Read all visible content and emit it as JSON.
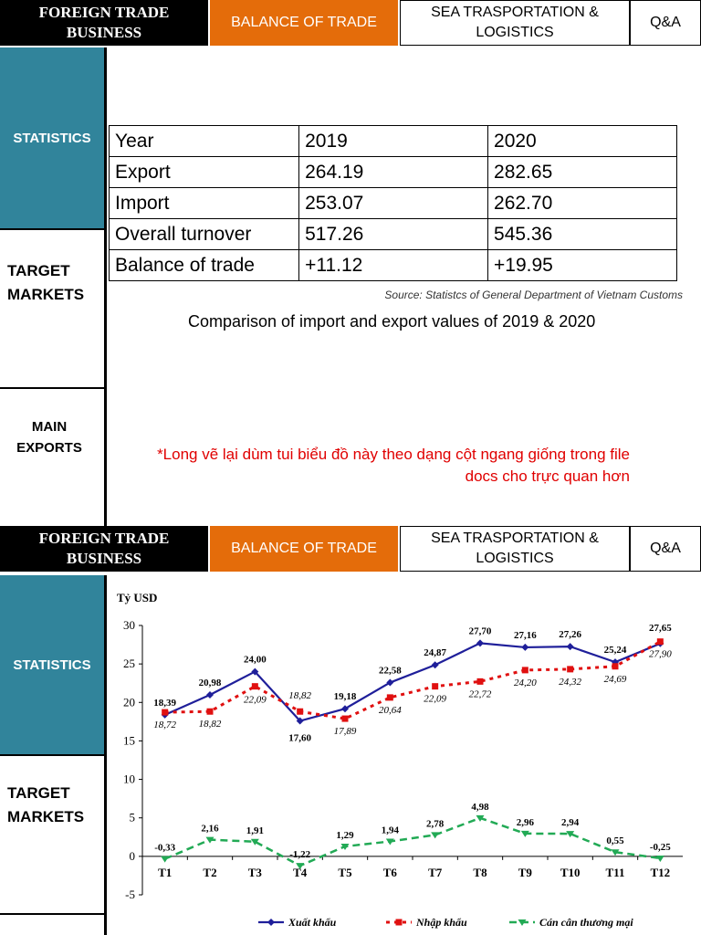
{
  "nav": {
    "tab_foreign": "FOREIGN TRADE BUSINESS",
    "tab_balance": "BALANCE OF TRADE",
    "tab_sea": "SEA TRASPORTATION & LOGISTICS",
    "tab_qa": "Q&A"
  },
  "sidebar": {
    "statistics": "STATISTICS",
    "target_markets": "TARGET MARKETS",
    "main_exports": "MAIN EXPORTS"
  },
  "table": {
    "rows": [
      [
        "Year",
        "2019",
        "2020"
      ],
      [
        "Export",
        "264.19",
        "282.65"
      ],
      [
        "Import",
        "253.07",
        "262.70"
      ],
      [
        "Overall turnover",
        "517.26",
        "545.36"
      ],
      [
        "Balance of trade",
        "+11.12",
        "+19.95"
      ]
    ]
  },
  "source": "Source: Statistcs of General Department of Vietnam Customs",
  "caption": "Comparison of import and export values of 2019 & 2020",
  "note": "*Long vẽ lại dùm tui biểu đồ này theo dạng cột ngang giống trong file docs cho trực quan hơn",
  "colors": {
    "export": "#1f1f9a",
    "import": "#e01010",
    "balance": "#22aa55",
    "statistics_bg": "#31849b",
    "active_tab": "#e46c0a"
  },
  "chart_data": {
    "type": "line",
    "ylabel": "Tỷ USD",
    "ylim": [
      -5,
      30
    ],
    "yticks": [
      -5,
      0,
      5,
      10,
      15,
      20,
      25,
      30
    ],
    "categories": [
      "T1",
      "T2",
      "T3",
      "T4",
      "T5",
      "T6",
      "T7",
      "T8",
      "T9",
      "T10",
      "T11",
      "T12"
    ],
    "legend_position": "bottom",
    "grid": false,
    "series": [
      {
        "name": "Xuất khẩu",
        "values": [
          18.39,
          20.98,
          24.0,
          17.6,
          19.18,
          22.58,
          24.87,
          27.7,
          27.16,
          27.26,
          25.24,
          27.65
        ],
        "labels": [
          "18,39",
          "20,98",
          "24,00",
          "17,60",
          "19,18",
          "22,58",
          "24,87",
          "27,70",
          "27,16",
          "27,26",
          "25,24",
          "27,65"
        ]
      },
      {
        "name": "Nhập khẩu",
        "values": [
          18.72,
          18.82,
          22.09,
          18.82,
          17.89,
          20.64,
          22.09,
          22.72,
          24.2,
          24.32,
          24.69,
          27.9
        ],
        "labels": [
          "18,72",
          "18,82",
          "22,09",
          "18,82",
          "17,89",
          "20,64",
          "22,09",
          "22,72",
          "24,20",
          "24,32",
          "24,69",
          "27,90"
        ]
      },
      {
        "name": "Cán cân thương mại",
        "values": [
          -0.33,
          2.16,
          1.91,
          -1.22,
          1.29,
          1.94,
          2.78,
          4.98,
          2.96,
          2.94,
          0.55,
          -0.25
        ],
        "labels": [
          "-0,33",
          "2,16",
          "1,91",
          "-1,22",
          "1,29",
          "1,94",
          "2,78",
          "4,98",
          "2,96",
          "2,94",
          "0,55",
          "-0,25"
        ]
      }
    ]
  }
}
